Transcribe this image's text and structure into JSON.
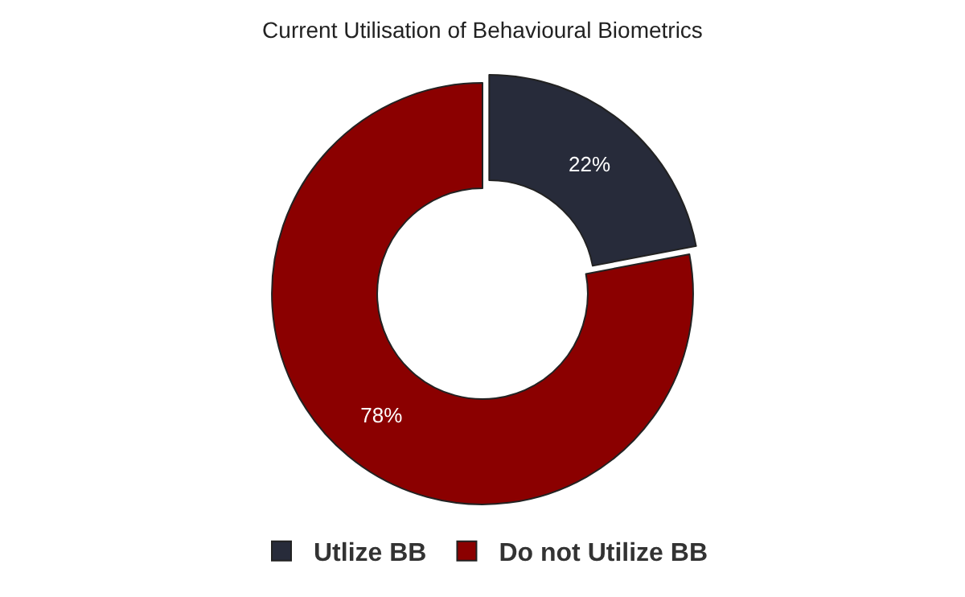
{
  "chart_data": {
    "type": "donut",
    "title": "Current Utilisation of Behavioural Biometrics",
    "categories": [
      "Utlize BB",
      "Do not Utilize BB"
    ],
    "values": [
      22,
      78
    ],
    "colors": [
      "#272b3a",
      "#8b0000"
    ],
    "value_labels": [
      "22%",
      "78%"
    ],
    "legend": "bottom"
  }
}
